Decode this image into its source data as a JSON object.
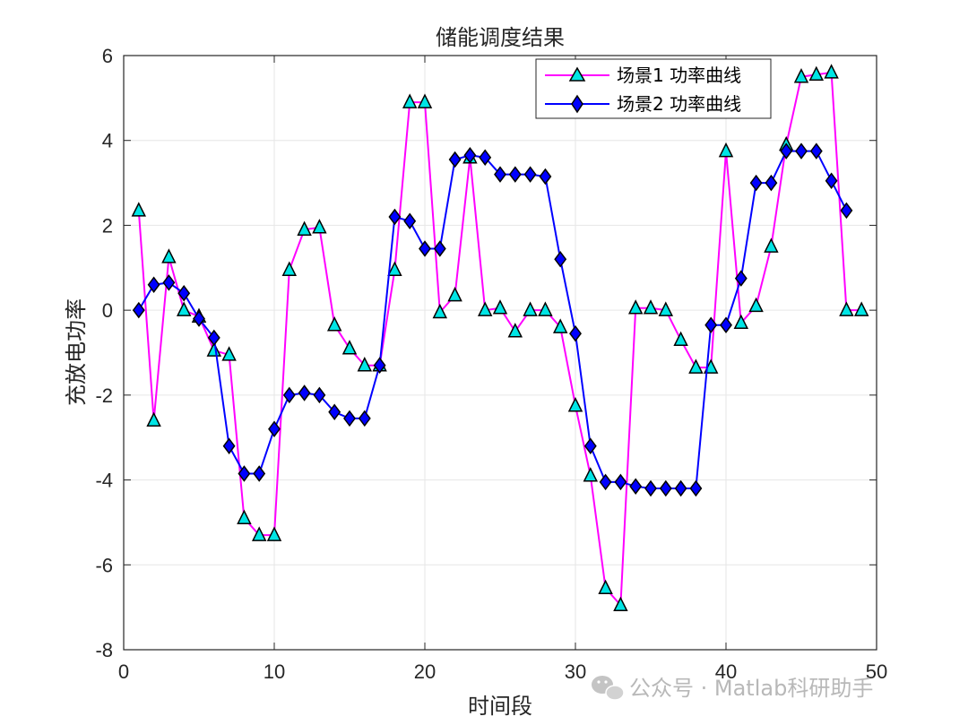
{
  "chart_data": {
    "type": "line",
    "title": "储能调度结果",
    "xlabel": "时间段",
    "ylabel": "充放电功率",
    "xlim": [
      0,
      50
    ],
    "ylim": [
      -8,
      6
    ],
    "xticks": [
      0,
      10,
      20,
      30,
      40,
      50
    ],
    "yticks": [
      -8,
      -6,
      -4,
      -2,
      0,
      2,
      4,
      6
    ],
    "grid": true,
    "legend_position": "top-right",
    "series": [
      {
        "name": "场景1 功率曲线",
        "color": "#ff00ff",
        "marker": "triangle",
        "marker_color": "#00e5e5",
        "x": [
          1,
          2,
          3,
          4,
          5,
          6,
          7,
          8,
          9,
          10,
          11,
          12,
          13,
          14,
          15,
          16,
          17,
          18,
          19,
          20,
          21,
          22,
          23,
          24,
          25,
          26,
          27,
          28,
          29,
          30,
          31,
          32,
          33,
          34,
          35,
          36,
          37,
          38,
          39,
          40,
          41,
          42,
          43,
          44,
          45,
          46,
          47,
          48,
          49
        ],
        "values": [
          2.35,
          -2.6,
          1.25,
          0.0,
          -0.15,
          -0.95,
          -1.05,
          -4.9,
          -5.3,
          -5.3,
          0.95,
          1.9,
          1.95,
          -0.35,
          -0.9,
          -1.3,
          -1.3,
          0.95,
          4.9,
          4.9,
          -0.05,
          0.35,
          3.6,
          0.0,
          0.05,
          -0.5,
          0.0,
          0.0,
          -0.4,
          -2.25,
          -3.9,
          -6.55,
          -6.95,
          0.05,
          0.05,
          0.0,
          -0.7,
          -1.35,
          -1.35,
          3.75,
          -0.3,
          0.1,
          1.5,
          3.9,
          5.5,
          5.55,
          5.6,
          0.0,
          0.0
        ]
      },
      {
        "name": "场景2 功率曲线",
        "color": "#0000ff",
        "marker": "diamond",
        "marker_color": "#0000ff",
        "x": [
          1,
          2,
          3,
          4,
          5,
          6,
          7,
          8,
          9,
          10,
          11,
          12,
          13,
          14,
          15,
          16,
          17,
          18,
          19,
          20,
          21,
          22,
          23,
          24,
          25,
          26,
          27,
          28,
          29,
          30,
          31,
          32,
          33,
          34,
          35,
          36,
          37,
          38,
          39,
          40,
          41,
          42,
          43,
          44,
          45,
          46,
          47,
          48
        ],
        "values": [
          0.0,
          0.6,
          0.65,
          0.4,
          -0.2,
          -0.65,
          -3.2,
          -3.85,
          -3.85,
          -2.8,
          -2.0,
          -1.95,
          -2.0,
          -2.4,
          -2.55,
          -2.55,
          -1.3,
          2.2,
          2.1,
          1.45,
          1.45,
          3.55,
          3.65,
          3.6,
          3.2,
          3.2,
          3.2,
          3.15,
          1.2,
          -0.55,
          -3.2,
          -4.05,
          -4.05,
          -4.15,
          -4.2,
          -4.2,
          -4.2,
          -4.2,
          -0.35,
          -0.35,
          0.75,
          3.0,
          3.0,
          3.75,
          3.75,
          3.75,
          3.05,
          2.35
        ]
      }
    ]
  },
  "watermark": "公众号 · Matlab科研助手"
}
